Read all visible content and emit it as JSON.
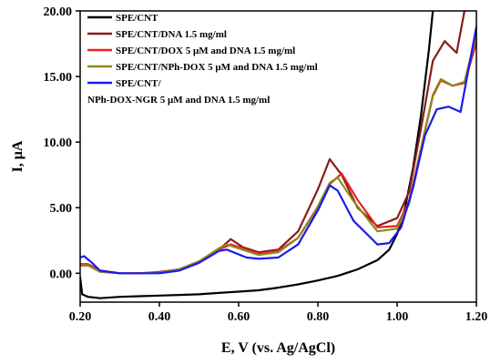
{
  "chart_data": {
    "type": "line",
    "xlabel": "E, V (vs. Ag/AgCl)",
    "ylabel": "I, μA",
    "xlim": [
      0.2,
      1.2
    ],
    "ylim": [
      -2.2,
      20
    ],
    "xticks": [
      "0.20",
      "0.40",
      "0.60",
      "0.80",
      "1.00",
      "1.20"
    ],
    "yticks": [
      "0.00",
      "5.00",
      "10.00",
      "15.00",
      "20.00"
    ],
    "legend_position": "top-left",
    "series": [
      {
        "name": "SPE/CNT",
        "color": "#000000",
        "points": [
          [
            0.2,
            -0.3
          ],
          [
            0.205,
            -1.6
          ],
          [
            0.22,
            -1.8
          ],
          [
            0.25,
            -1.9
          ],
          [
            0.3,
            -1.8
          ],
          [
            0.35,
            -1.75
          ],
          [
            0.4,
            -1.7
          ],
          [
            0.45,
            -1.65
          ],
          [
            0.5,
            -1.6
          ],
          [
            0.55,
            -1.5
          ],
          [
            0.6,
            -1.4
          ],
          [
            0.65,
            -1.3
          ],
          [
            0.7,
            -1.1
          ],
          [
            0.75,
            -0.85
          ],
          [
            0.8,
            -0.55
          ],
          [
            0.85,
            -0.2
          ],
          [
            0.9,
            0.3
          ],
          [
            0.95,
            1.0
          ],
          [
            0.98,
            1.8
          ],
          [
            1.0,
            3.0
          ],
          [
            1.02,
            5.0
          ],
          [
            1.04,
            8.0
          ],
          [
            1.06,
            12.0
          ],
          [
            1.08,
            17.0
          ],
          [
            1.09,
            20.0
          ]
        ]
      },
      {
        "name": "SPE/CNT/DNA 1.5 mg/ml",
        "color": "#8b1a1a",
        "points": [
          [
            0.2,
            0.6
          ],
          [
            0.22,
            0.6
          ],
          [
            0.25,
            0.2
          ],
          [
            0.3,
            0.0
          ],
          [
            0.35,
            0.0
          ],
          [
            0.4,
            0.1
          ],
          [
            0.45,
            0.3
          ],
          [
            0.5,
            0.9
          ],
          [
            0.55,
            1.8
          ],
          [
            0.58,
            2.6
          ],
          [
            0.61,
            2.0
          ],
          [
            0.65,
            1.6
          ],
          [
            0.7,
            1.8
          ],
          [
            0.75,
            3.2
          ],
          [
            0.8,
            6.4
          ],
          [
            0.83,
            8.7
          ],
          [
            0.86,
            7.5
          ],
          [
            0.9,
            5.0
          ],
          [
            0.95,
            3.6
          ],
          [
            1.0,
            4.2
          ],
          [
            1.03,
            6.2
          ],
          [
            1.06,
            11.0
          ],
          [
            1.09,
            16.2
          ],
          [
            1.12,
            17.7
          ],
          [
            1.15,
            16.8
          ],
          [
            1.17,
            20.0
          ]
        ]
      },
      {
        "name": "SPE/CNT/DOX 5 μM and DNA 1.5 mg/ml",
        "color": "#e82020",
        "points": [
          [
            0.2,
            0.7
          ],
          [
            0.22,
            0.7
          ],
          [
            0.25,
            0.2
          ],
          [
            0.3,
            0.0
          ],
          [
            0.35,
            0.0
          ],
          [
            0.4,
            0.05
          ],
          [
            0.45,
            0.3
          ],
          [
            0.5,
            0.9
          ],
          [
            0.55,
            1.8
          ],
          [
            0.58,
            2.2
          ],
          [
            0.62,
            1.8
          ],
          [
            0.65,
            1.5
          ],
          [
            0.7,
            1.7
          ],
          [
            0.75,
            2.7
          ],
          [
            0.8,
            5.0
          ],
          [
            0.83,
            6.8
          ],
          [
            0.86,
            7.6
          ],
          [
            0.9,
            5.6
          ],
          [
            0.95,
            3.5
          ],
          [
            1.0,
            3.6
          ],
          [
            1.03,
            5.5
          ],
          [
            1.06,
            9.5
          ],
          [
            1.09,
            13.5
          ],
          [
            1.11,
            14.7
          ],
          [
            1.14,
            14.3
          ],
          [
            1.17,
            14.5
          ],
          [
            1.2,
            17.6
          ]
        ]
      },
      {
        "name": "SPE/CNT/NPh-DOX 5 μM and DNA 1.5 mg/ml",
        "color": "#8a8a1e",
        "points": [
          [
            0.2,
            0.6
          ],
          [
            0.22,
            0.6
          ],
          [
            0.25,
            0.1
          ],
          [
            0.3,
            0.0
          ],
          [
            0.35,
            0.0
          ],
          [
            0.4,
            0.05
          ],
          [
            0.45,
            0.3
          ],
          [
            0.5,
            0.9
          ],
          [
            0.55,
            1.9
          ],
          [
            0.57,
            2.2
          ],
          [
            0.62,
            1.7
          ],
          [
            0.65,
            1.4
          ],
          [
            0.7,
            1.6
          ],
          [
            0.75,
            2.7
          ],
          [
            0.8,
            5.1
          ],
          [
            0.83,
            6.9
          ],
          [
            0.85,
            7.3
          ],
          [
            0.89,
            5.5
          ],
          [
            0.95,
            3.2
          ],
          [
            1.0,
            3.4
          ],
          [
            1.03,
            5.3
          ],
          [
            1.06,
            9.5
          ],
          [
            1.09,
            13.6
          ],
          [
            1.11,
            14.8
          ],
          [
            1.14,
            14.3
          ],
          [
            1.17,
            14.6
          ],
          [
            1.2,
            18.2
          ]
        ]
      },
      {
        "name": "SPE/CNT/\nNPh-DOX-NGR 5 μM and DNA 1.5 mg/ml",
        "color": "#1a1aee",
        "points": [
          [
            0.2,
            1.2
          ],
          [
            0.21,
            1.3
          ],
          [
            0.23,
            0.8
          ],
          [
            0.25,
            0.2
          ],
          [
            0.3,
            0.0
          ],
          [
            0.35,
            0.0
          ],
          [
            0.4,
            0.0
          ],
          [
            0.45,
            0.2
          ],
          [
            0.5,
            0.8
          ],
          [
            0.55,
            1.7
          ],
          [
            0.57,
            1.8
          ],
          [
            0.62,
            1.2
          ],
          [
            0.65,
            1.1
          ],
          [
            0.7,
            1.2
          ],
          [
            0.75,
            2.2
          ],
          [
            0.8,
            4.8
          ],
          [
            0.83,
            6.7
          ],
          [
            0.85,
            6.3
          ],
          [
            0.89,
            4.0
          ],
          [
            0.95,
            2.2
          ],
          [
            0.98,
            2.3
          ],
          [
            1.01,
            3.5
          ],
          [
            1.04,
            6.5
          ],
          [
            1.07,
            10.5
          ],
          [
            1.1,
            12.5
          ],
          [
            1.13,
            12.7
          ],
          [
            1.16,
            12.3
          ],
          [
            1.2,
            18.8
          ]
        ]
      }
    ]
  }
}
